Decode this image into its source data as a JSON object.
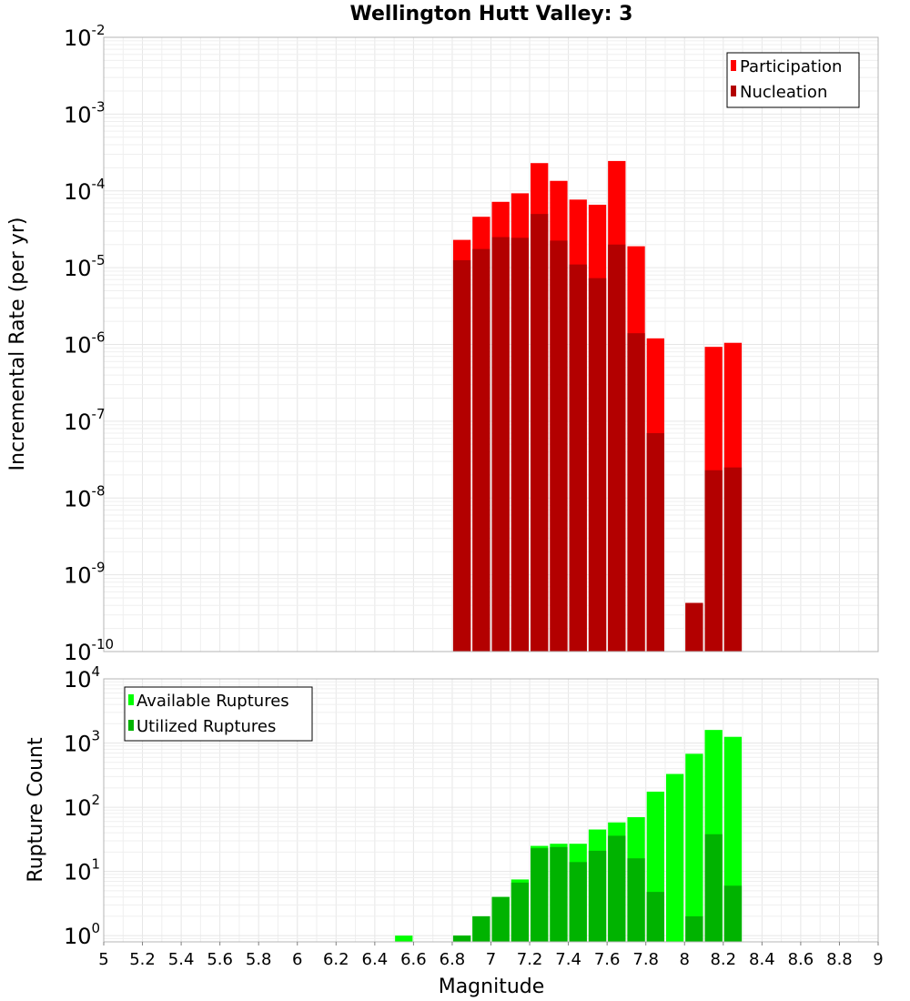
{
  "chart_data": [
    {
      "type": "bar",
      "title": "Wellington Hutt Valley: 3",
      "xlabel": "Magnitude",
      "ylabel": "Incremental Rate (per yr)",
      "y_scale": "log",
      "xlim": [
        5,
        9
      ],
      "ylim": [
        1e-10,
        0.01
      ],
      "y_tick_exponents": [
        -10,
        -9,
        -8,
        -7,
        -6,
        -5,
        -4,
        -3,
        -2
      ],
      "legend_position": "top-right",
      "x": [
        6.85,
        6.95,
        7.05,
        7.15,
        7.25,
        7.35,
        7.45,
        7.55,
        7.65,
        7.75,
        7.85,
        8.05,
        8.15,
        8.25
      ],
      "series": [
        {
          "name": "Participation",
          "color": "#ff0000",
          "values": [
            2.3e-05,
            4.6e-05,
            7.2e-05,
            9.3e-05,
            0.00023,
            0.000135,
            7.7e-05,
            6.6e-05,
            0.000245,
            1.9e-05,
            1.2e-06,
            4.3e-10,
            9.3e-07,
            1.05e-06
          ]
        },
        {
          "name": "Nucleation",
          "color": "#b30000",
          "values": [
            1.25e-05,
            1.75e-05,
            2.5e-05,
            2.45e-05,
            5e-05,
            2.25e-05,
            1.1e-05,
            7.3e-06,
            2e-05,
            1.4e-06,
            7e-08,
            4.3e-10,
            2.3e-08,
            2.5e-08
          ]
        }
      ]
    },
    {
      "type": "bar",
      "xlabel": "Magnitude",
      "ylabel": "Rupture Count",
      "y_scale": "log",
      "xlim": [
        5,
        9
      ],
      "ylim": [
        0.8,
        10000
      ],
      "y_tick_exponents": [
        0,
        1,
        2,
        3,
        4
      ],
      "x_ticks": [
        "5",
        "5.2",
        "5.4",
        "5.6",
        "5.8",
        "6",
        "6.2",
        "6.4",
        "6.6",
        "6.8",
        "7",
        "7.2",
        "7.4",
        "7.6",
        "7.8",
        "8",
        "8.2",
        "8.4",
        "8.6",
        "8.8",
        "9"
      ],
      "legend_position": "top-left",
      "x": [
        6.55,
        6.85,
        6.95,
        7.05,
        7.15,
        7.25,
        7.35,
        7.45,
        7.55,
        7.65,
        7.75,
        7.85,
        7.95,
        8.05,
        8.15,
        8.25
      ],
      "series": [
        {
          "name": "Available Ruptures",
          "color": "#00ff00",
          "values": [
            1,
            1,
            2,
            4,
            7.5,
            25,
            27,
            27,
            45,
            58,
            70,
            175,
            330,
            680,
            1600,
            1250
          ]
        },
        {
          "name": "Utilized Ruptures",
          "color": "#00b300",
          "values": [
            0,
            1,
            2,
            4,
            6.7,
            23,
            24,
            14,
            21,
            36,
            16,
            4.8,
            0,
            2,
            38,
            6
          ]
        }
      ]
    }
  ]
}
